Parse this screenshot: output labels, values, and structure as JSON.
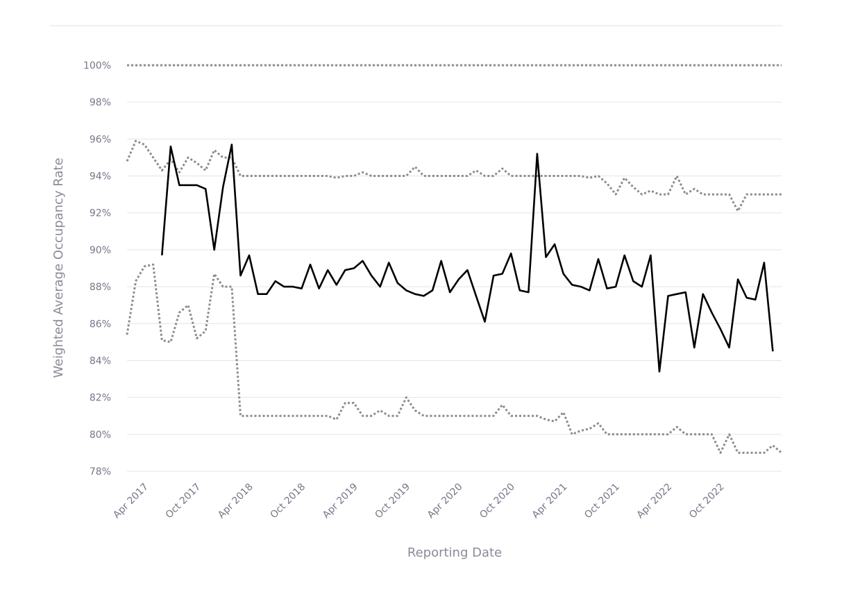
{
  "chart_data": {
    "type": "line",
    "xlabel": "Reporting Date",
    "ylabel": "Weighted Average Occupancy Rate",
    "y_tick_labels": [
      "100%",
      "98%",
      "96%",
      "94%",
      "92%",
      "90%",
      "88%",
      "86%",
      "84%",
      "82%",
      "80%",
      "78%"
    ],
    "y_tick_values": [
      100,
      98,
      96,
      94,
      92,
      90,
      88,
      86,
      84,
      82,
      80,
      78
    ],
    "x_tick_labels": [
      "Apr 2017",
      "Oct 2017",
      "Apr 2018",
      "Oct 2018",
      "Apr 2019",
      "Oct 2019",
      "Apr 2020",
      "Oct 2020",
      "Apr 2021",
      "Oct 2021",
      "Apr 2022",
      "Oct 2022"
    ],
    "x_tick_dates": [
      "2017-04",
      "2017-10",
      "2018-04",
      "2018-10",
      "2019-04",
      "2019-10",
      "2020-04",
      "2020-10",
      "2021-04",
      "2021-10",
      "2022-04",
      "2022-10"
    ],
    "x_range": [
      "2017-02",
      "2023-05"
    ],
    "ylim": [
      78,
      100
    ],
    "grid": true,
    "legend": "none",
    "series": [
      {
        "style": "dotted",
        "color": "#8c8c8c",
        "points": [
          [
            "2017-02",
            100
          ],
          [
            "2023-05",
            100
          ]
        ]
      },
      {
        "style": "dotted",
        "color": "#8c8c8c",
        "points": [
          [
            "2017-02",
            94.8
          ],
          [
            "2017-03",
            95.9
          ],
          [
            "2017-04",
            95.7
          ],
          [
            "2017-05",
            95.0
          ],
          [
            "2017-06",
            94.3
          ],
          [
            "2017-07",
            94.9
          ],
          [
            "2017-08",
            94.2
          ],
          [
            "2017-09",
            95.0
          ],
          [
            "2017-10",
            94.7
          ],
          [
            "2017-11",
            94.3
          ],
          [
            "2017-12",
            95.4
          ],
          [
            "2018-01",
            95.0
          ],
          [
            "2018-02",
            95.0
          ],
          [
            "2018-03",
            94.0
          ],
          [
            "2018-04",
            94.0
          ],
          [
            "2018-06",
            94.0
          ],
          [
            "2018-08",
            94.0
          ],
          [
            "2018-10",
            94.0
          ],
          [
            "2018-12",
            94.0
          ],
          [
            "2019-01",
            94.0
          ],
          [
            "2019-02",
            93.9
          ],
          [
            "2019-03",
            94.0
          ],
          [
            "2019-04",
            94.0
          ],
          [
            "2019-05",
            94.2
          ],
          [
            "2019-06",
            94.0
          ],
          [
            "2019-08",
            94.0
          ],
          [
            "2019-10",
            94.0
          ],
          [
            "2019-11",
            94.5
          ],
          [
            "2019-12",
            94.0
          ],
          [
            "2020-02",
            94.0
          ],
          [
            "2020-04",
            94.0
          ],
          [
            "2020-05",
            94.0
          ],
          [
            "2020-06",
            94.3
          ],
          [
            "2020-07",
            94.0
          ],
          [
            "2020-08",
            94.0
          ],
          [
            "2020-09",
            94.4
          ],
          [
            "2020-10",
            94.0
          ],
          [
            "2020-12",
            94.0
          ],
          [
            "2021-02",
            94.0
          ],
          [
            "2021-04",
            94.0
          ],
          [
            "2021-06",
            94.0
          ],
          [
            "2021-07",
            93.9
          ],
          [
            "2021-08",
            94.0
          ],
          [
            "2021-09",
            93.6
          ],
          [
            "2021-10",
            93.0
          ],
          [
            "2021-11",
            93.9
          ],
          [
            "2021-12",
            93.4
          ],
          [
            "2022-01",
            93.0
          ],
          [
            "2022-02",
            93.2
          ],
          [
            "2022-03",
            93.0
          ],
          [
            "2022-04",
            93.0
          ],
          [
            "2022-05",
            94.0
          ],
          [
            "2022-06",
            93.0
          ],
          [
            "2022-07",
            93.3
          ],
          [
            "2022-08",
            93.0
          ],
          [
            "2022-09",
            93.0
          ],
          [
            "2022-10",
            93.0
          ],
          [
            "2022-11",
            93.0
          ],
          [
            "2022-12",
            92.1
          ],
          [
            "2023-01",
            93.0
          ],
          [
            "2023-02",
            93.0
          ],
          [
            "2023-03",
            93.0
          ],
          [
            "2023-04",
            93.0
          ],
          [
            "2023-05",
            93.0
          ]
        ]
      },
      {
        "style": "dotted",
        "color": "#8c8c8c",
        "points": [
          [
            "2017-02",
            85.4
          ],
          [
            "2017-03",
            88.3
          ],
          [
            "2017-04",
            89.1
          ],
          [
            "2017-05",
            89.2
          ],
          [
            "2017-06",
            85.1
          ],
          [
            "2017-07",
            85.0
          ],
          [
            "2017-08",
            86.6
          ],
          [
            "2017-09",
            87.0
          ],
          [
            "2017-10",
            85.2
          ],
          [
            "2017-11",
            85.6
          ],
          [
            "2017-12",
            88.7
          ],
          [
            "2018-01",
            88.0
          ],
          [
            "2018-02",
            88.0
          ],
          [
            "2018-03",
            81.0
          ],
          [
            "2018-04",
            81.0
          ],
          [
            "2018-06",
            81.0
          ],
          [
            "2018-08",
            81.0
          ],
          [
            "2018-10",
            81.0
          ],
          [
            "2018-12",
            81.0
          ],
          [
            "2019-01",
            81.0
          ],
          [
            "2019-02",
            80.8
          ],
          [
            "2019-03",
            81.7
          ],
          [
            "2019-04",
            81.7
          ],
          [
            "2019-05",
            81.0
          ],
          [
            "2019-06",
            81.0
          ],
          [
            "2019-07",
            81.3
          ],
          [
            "2019-08",
            81.0
          ],
          [
            "2019-09",
            81.0
          ],
          [
            "2019-10",
            82.0
          ],
          [
            "2019-11",
            81.3
          ],
          [
            "2019-12",
            81.0
          ],
          [
            "2020-02",
            81.0
          ],
          [
            "2020-04",
            81.0
          ],
          [
            "2020-06",
            81.0
          ],
          [
            "2020-08",
            81.0
          ],
          [
            "2020-09",
            81.6
          ],
          [
            "2020-10",
            81.0
          ],
          [
            "2020-12",
            81.0
          ],
          [
            "2021-01",
            81.0
          ],
          [
            "2021-02",
            80.8
          ],
          [
            "2021-03",
            80.7
          ],
          [
            "2021-04",
            81.2
          ],
          [
            "2021-05",
            80.0
          ],
          [
            "2021-06",
            80.2
          ],
          [
            "2021-07",
            80.3
          ],
          [
            "2021-08",
            80.6
          ],
          [
            "2021-09",
            80.0
          ],
          [
            "2021-10",
            80.0
          ],
          [
            "2021-12",
            80.0
          ],
          [
            "2022-02",
            80.0
          ],
          [
            "2022-04",
            80.0
          ],
          [
            "2022-05",
            80.4
          ],
          [
            "2022-06",
            80.0
          ],
          [
            "2022-07",
            80.0
          ],
          [
            "2022-08",
            80.0
          ],
          [
            "2022-09",
            80.0
          ],
          [
            "2022-10",
            79.0
          ],
          [
            "2022-11",
            80.0
          ],
          [
            "2022-12",
            79.0
          ],
          [
            "2023-01",
            79.0
          ],
          [
            "2023-02",
            79.0
          ],
          [
            "2023-03",
            79.0
          ],
          [
            "2023-04",
            79.4
          ],
          [
            "2023-05",
            79.0
          ]
        ]
      },
      {
        "style": "solid",
        "color": "#000000",
        "points": [
          [
            "2017-06",
            89.7
          ],
          [
            "2017-07",
            95.6
          ],
          [
            "2017-08",
            93.5
          ],
          [
            "2017-09",
            93.5
          ],
          [
            "2017-10",
            93.5
          ],
          [
            "2017-11",
            93.3
          ],
          [
            "2017-12",
            90.0
          ],
          [
            "2018-01",
            93.4
          ],
          [
            "2018-02",
            95.7
          ],
          [
            "2018-03",
            88.6
          ],
          [
            "2018-04",
            89.7
          ],
          [
            "2018-05",
            87.6
          ],
          [
            "2018-06",
            87.6
          ],
          [
            "2018-07",
            88.3
          ],
          [
            "2018-08",
            88.0
          ],
          [
            "2018-09",
            88.0
          ],
          [
            "2018-10",
            87.9
          ],
          [
            "2018-11",
            89.2
          ],
          [
            "2018-12",
            87.9
          ],
          [
            "2019-01",
            88.9
          ],
          [
            "2019-02",
            88.1
          ],
          [
            "2019-03",
            88.9
          ],
          [
            "2019-04",
            89.0
          ],
          [
            "2019-05",
            89.4
          ],
          [
            "2019-06",
            88.6
          ],
          [
            "2019-07",
            88.0
          ],
          [
            "2019-08",
            89.3
          ],
          [
            "2019-09",
            88.2
          ],
          [
            "2019-10",
            87.8
          ],
          [
            "2019-11",
            87.6
          ],
          [
            "2019-12",
            87.5
          ],
          [
            "2020-01",
            87.8
          ],
          [
            "2020-02",
            89.4
          ],
          [
            "2020-03",
            87.7
          ],
          [
            "2020-04",
            88.4
          ],
          [
            "2020-05",
            88.9
          ],
          [
            "2020-06",
            87.5
          ],
          [
            "2020-07",
            86.1
          ],
          [
            "2020-08",
            88.6
          ],
          [
            "2020-09",
            88.7
          ],
          [
            "2020-10",
            89.8
          ],
          [
            "2020-11",
            87.8
          ],
          [
            "2020-12",
            87.7
          ],
          [
            "2021-01",
            95.2
          ],
          [
            "2021-02",
            89.6
          ],
          [
            "2021-03",
            90.3
          ],
          [
            "2021-04",
            88.7
          ],
          [
            "2021-05",
            88.1
          ],
          [
            "2021-06",
            88.0
          ],
          [
            "2021-07",
            87.8
          ],
          [
            "2021-08",
            89.5
          ],
          [
            "2021-09",
            87.9
          ],
          [
            "2021-10",
            88.0
          ],
          [
            "2021-11",
            89.7
          ],
          [
            "2021-12",
            88.3
          ],
          [
            "2022-01",
            88.0
          ],
          [
            "2022-02",
            89.7
          ],
          [
            "2022-03",
            83.4
          ],
          [
            "2022-04",
            87.5
          ],
          [
            "2022-05",
            87.6
          ],
          [
            "2022-06",
            87.7
          ],
          [
            "2022-07",
            84.7
          ],
          [
            "2022-08",
            87.6
          ],
          [
            "2022-09",
            86.6
          ],
          [
            "2022-10",
            85.7
          ],
          [
            "2022-11",
            84.7
          ],
          [
            "2022-12",
            88.4
          ],
          [
            "2023-01",
            87.4
          ],
          [
            "2023-02",
            87.3
          ],
          [
            "2023-03",
            89.3
          ],
          [
            "2023-04",
            84.5
          ]
        ]
      }
    ]
  }
}
